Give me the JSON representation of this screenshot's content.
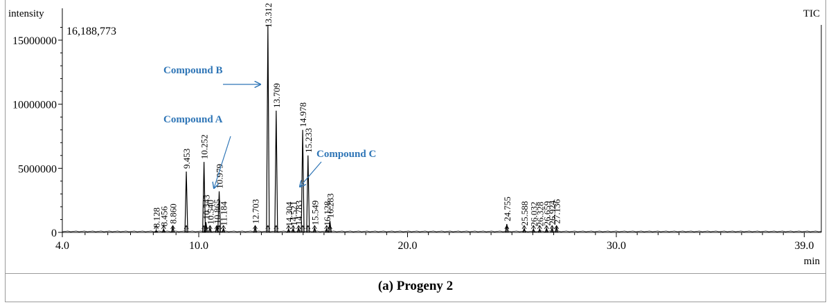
{
  "caption": "(a) Progeny 2",
  "chart_data": {
    "type": "line",
    "ylabel": "intensity",
    "xlabel": "min",
    "trace_label": "TIC",
    "max_intensity_label": "16,188,773",
    "xlim": [
      4.0,
      39.0
    ],
    "ylim": [
      0,
      16188773
    ],
    "x_ticks": [
      4.0,
      10.0,
      20.0,
      30.0,
      39.0
    ],
    "x_tick_labels": [
      "4.0",
      "10.0",
      "20.0",
      "30.0",
      "39.0"
    ],
    "y_ticks": [
      0,
      5000000,
      10000000,
      15000000
    ],
    "y_tick_labels": [
      "0",
      "5000000",
      "10000000",
      "15000000"
    ],
    "peaks": [
      {
        "rt": 8.128,
        "label": "8.128",
        "intensity": 150000
      },
      {
        "rt": 8.456,
        "label": "8.456",
        "intensity": 250000
      },
      {
        "rt": 8.86,
        "label": "8.860",
        "intensity": 450000
      },
      {
        "rt": 9.453,
        "label": "9.453",
        "intensity": 4750000
      },
      {
        "rt": 10.252,
        "label": "10.252",
        "intensity": 5500000
      },
      {
        "rt": 10.343,
        "label": "10.343",
        "intensity": 800000
      },
      {
        "rt": 10.54,
        "label": "10.540",
        "intensity": 400000
      },
      {
        "rt": 10.865,
        "label": "10.865",
        "intensity": 450000
      },
      {
        "rt": 10.979,
        "label": "10.979",
        "intensity": 3200000
      },
      {
        "rt": 11.184,
        "label": "11.184",
        "intensity": 300000
      },
      {
        "rt": 12.703,
        "label": "12.703",
        "intensity": 450000
      },
      {
        "rt": 13.312,
        "label": "13.312",
        "intensity": 16188773
      },
      {
        "rt": 13.709,
        "label": "13.709",
        "intensity": 9500000
      },
      {
        "rt": 14.304,
        "label": "14.304",
        "intensity": 250000
      },
      {
        "rt": 14.521,
        "label": "14.521",
        "intensity": 300000
      },
      {
        "rt": 14.783,
        "label": "14.783",
        "intensity": 350000
      },
      {
        "rt": 14.978,
        "label": "14.978",
        "intensity": 8000000
      },
      {
        "rt": 15.233,
        "label": "15.233",
        "intensity": 6000000
      },
      {
        "rt": 15.549,
        "label": "15.549",
        "intensity": 350000
      },
      {
        "rt": 16.128,
        "label": "16.128",
        "intensity": 300000
      },
      {
        "rt": 16.283,
        "label": "16.283",
        "intensity": 900000
      },
      {
        "rt": 24.755,
        "label": "24.755",
        "intensity": 650000
      },
      {
        "rt": 25.588,
        "label": "25.588",
        "intensity": 300000
      },
      {
        "rt": 26.032,
        "label": "26.032",
        "intensity": 250000
      },
      {
        "rt": 26.328,
        "label": "26.328",
        "intensity": 250000
      },
      {
        "rt": 26.659,
        "label": "26.659",
        "intensity": 300000
      },
      {
        "rt": 26.924,
        "label": "26.924",
        "intensity": 350000
      },
      {
        "rt": 27.136,
        "label": "27.136",
        "intensity": 450000
      }
    ],
    "annotations": [
      {
        "text": "Compound B",
        "peak": "13.312"
      },
      {
        "text": "Compound A",
        "peak": "10.979"
      },
      {
        "text": "Compound C",
        "peak": "15.233"
      }
    ],
    "annotation_color": "#2e75b6",
    "grid": false
  }
}
